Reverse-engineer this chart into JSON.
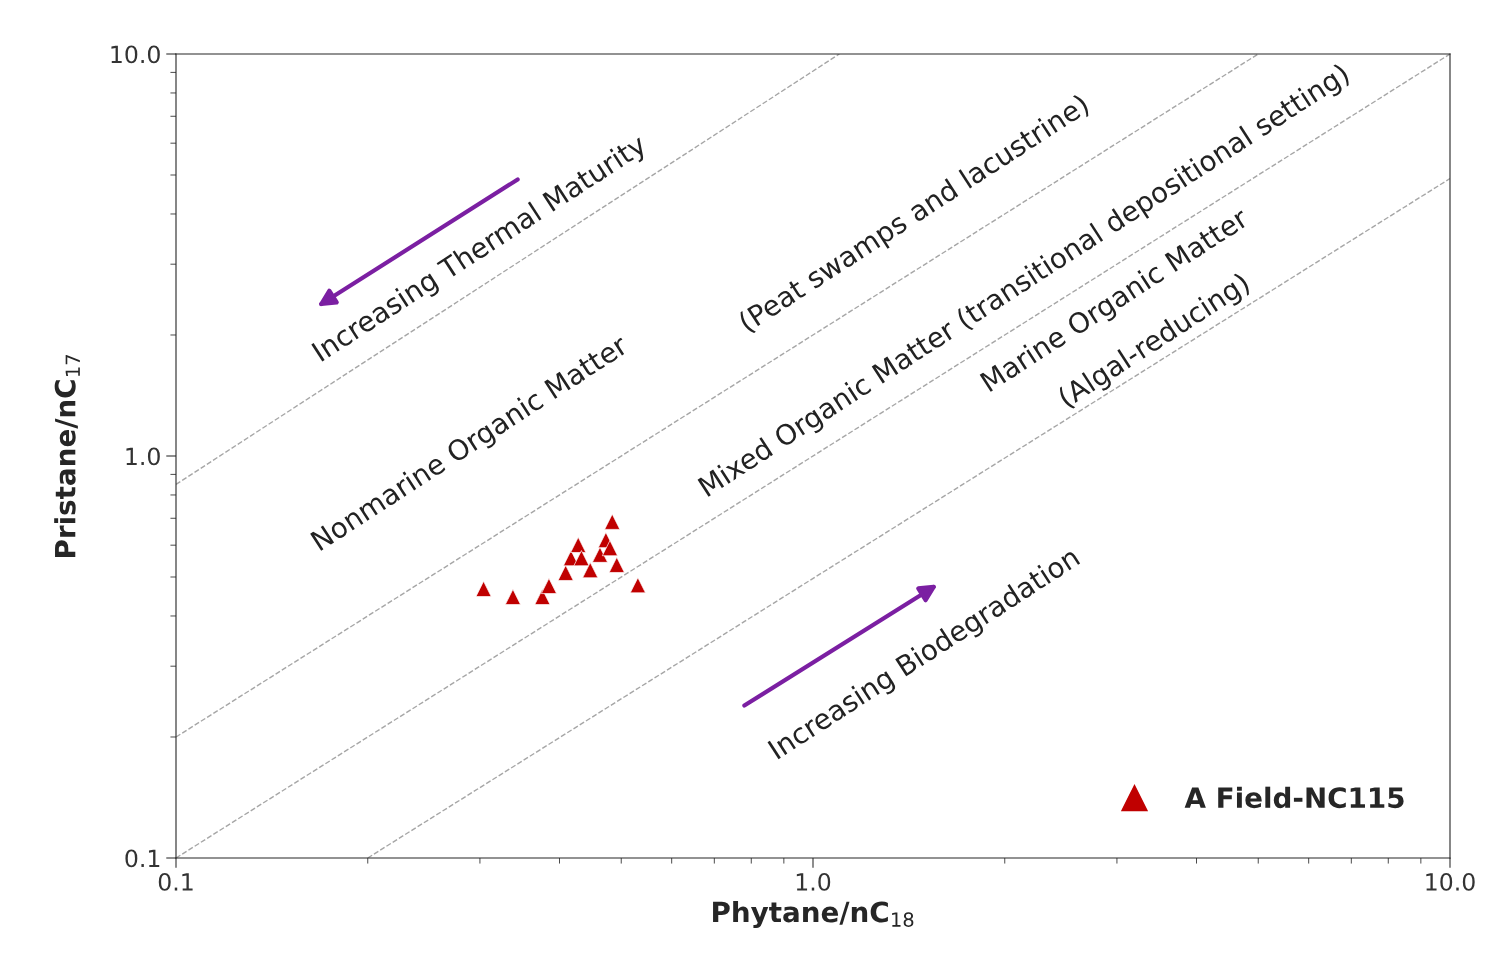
{
  "chart_data": {
    "type": "scatter",
    "xlabel": "Phytane/nC$_{18}$",
    "ylabel": "Pristane/nC$_{17}$",
    "log": "xy",
    "xlim": [
      0.1,
      10
    ],
    "ylim": [
      0.1,
      10
    ],
    "xticks": [
      {
        "value": 0.1,
        "label": "0.1"
      },
      {
        "value": 1,
        "label": "1.0"
      },
      {
        "value": 10,
        "label": "10.0"
      }
    ],
    "yticks": [
      {
        "value": 0.1,
        "label": "0.1"
      },
      {
        "value": 1,
        "label": "1.0"
      },
      {
        "value": 10,
        "label": "10.0"
      }
    ],
    "grid": false,
    "legend": "bottom right",
    "marker": "triangle",
    "series": [
      {
        "name": "A Field-NC115",
        "color": "#c00000",
        "x": [
          0.304,
          0.338,
          0.376,
          0.385,
          0.409,
          0.417,
          0.428,
          0.433,
          0.447,
          0.463,
          0.473,
          0.48,
          0.484,
          0.492,
          0.531
        ],
        "values": [
          0.467,
          0.446,
          0.446,
          0.475,
          0.512,
          0.557,
          0.601,
          0.557,
          0.52,
          0.568,
          0.618,
          0.59,
          0.686,
          0.536,
          0.477
        ]
      },
      {
        "type": "line",
        "color": "#a6a6a6",
        "line_style": "dashed",
        "marker": "none",
        "x": [
          0.1,
          1.1
        ],
        "values": [
          0.85,
          10
        ]
      },
      {
        "type": "line",
        "color": "#a6a6a6",
        "line_style": "dashed",
        "marker": "none",
        "x": [
          0.1,
          5
        ],
        "values": [
          0.2,
          10
        ]
      },
      {
        "type": "line",
        "color": "#a6a6a6",
        "line_style": "dashed",
        "marker": "none",
        "x": [
          0.1,
          10
        ],
        "values": [
          0.1,
          10
        ]
      },
      {
        "type": "line",
        "color": "#a6a6a6",
        "line_style": "dashed",
        "marker": "none",
        "x": [
          0.2,
          10
        ],
        "values": [
          0.1,
          4.9
        ]
      }
    ],
    "annotations": [
      "Increasing Thermal Maturity",
      "Nonmarine Organic Matter",
      "(Peat swamps and lacustrine)",
      "Mixed Organic Matter (transitional depositional setting)",
      "Marine Organic Matter",
      "(Algal-reducing)",
      "Increasing Biodegradation"
    ]
  }
}
